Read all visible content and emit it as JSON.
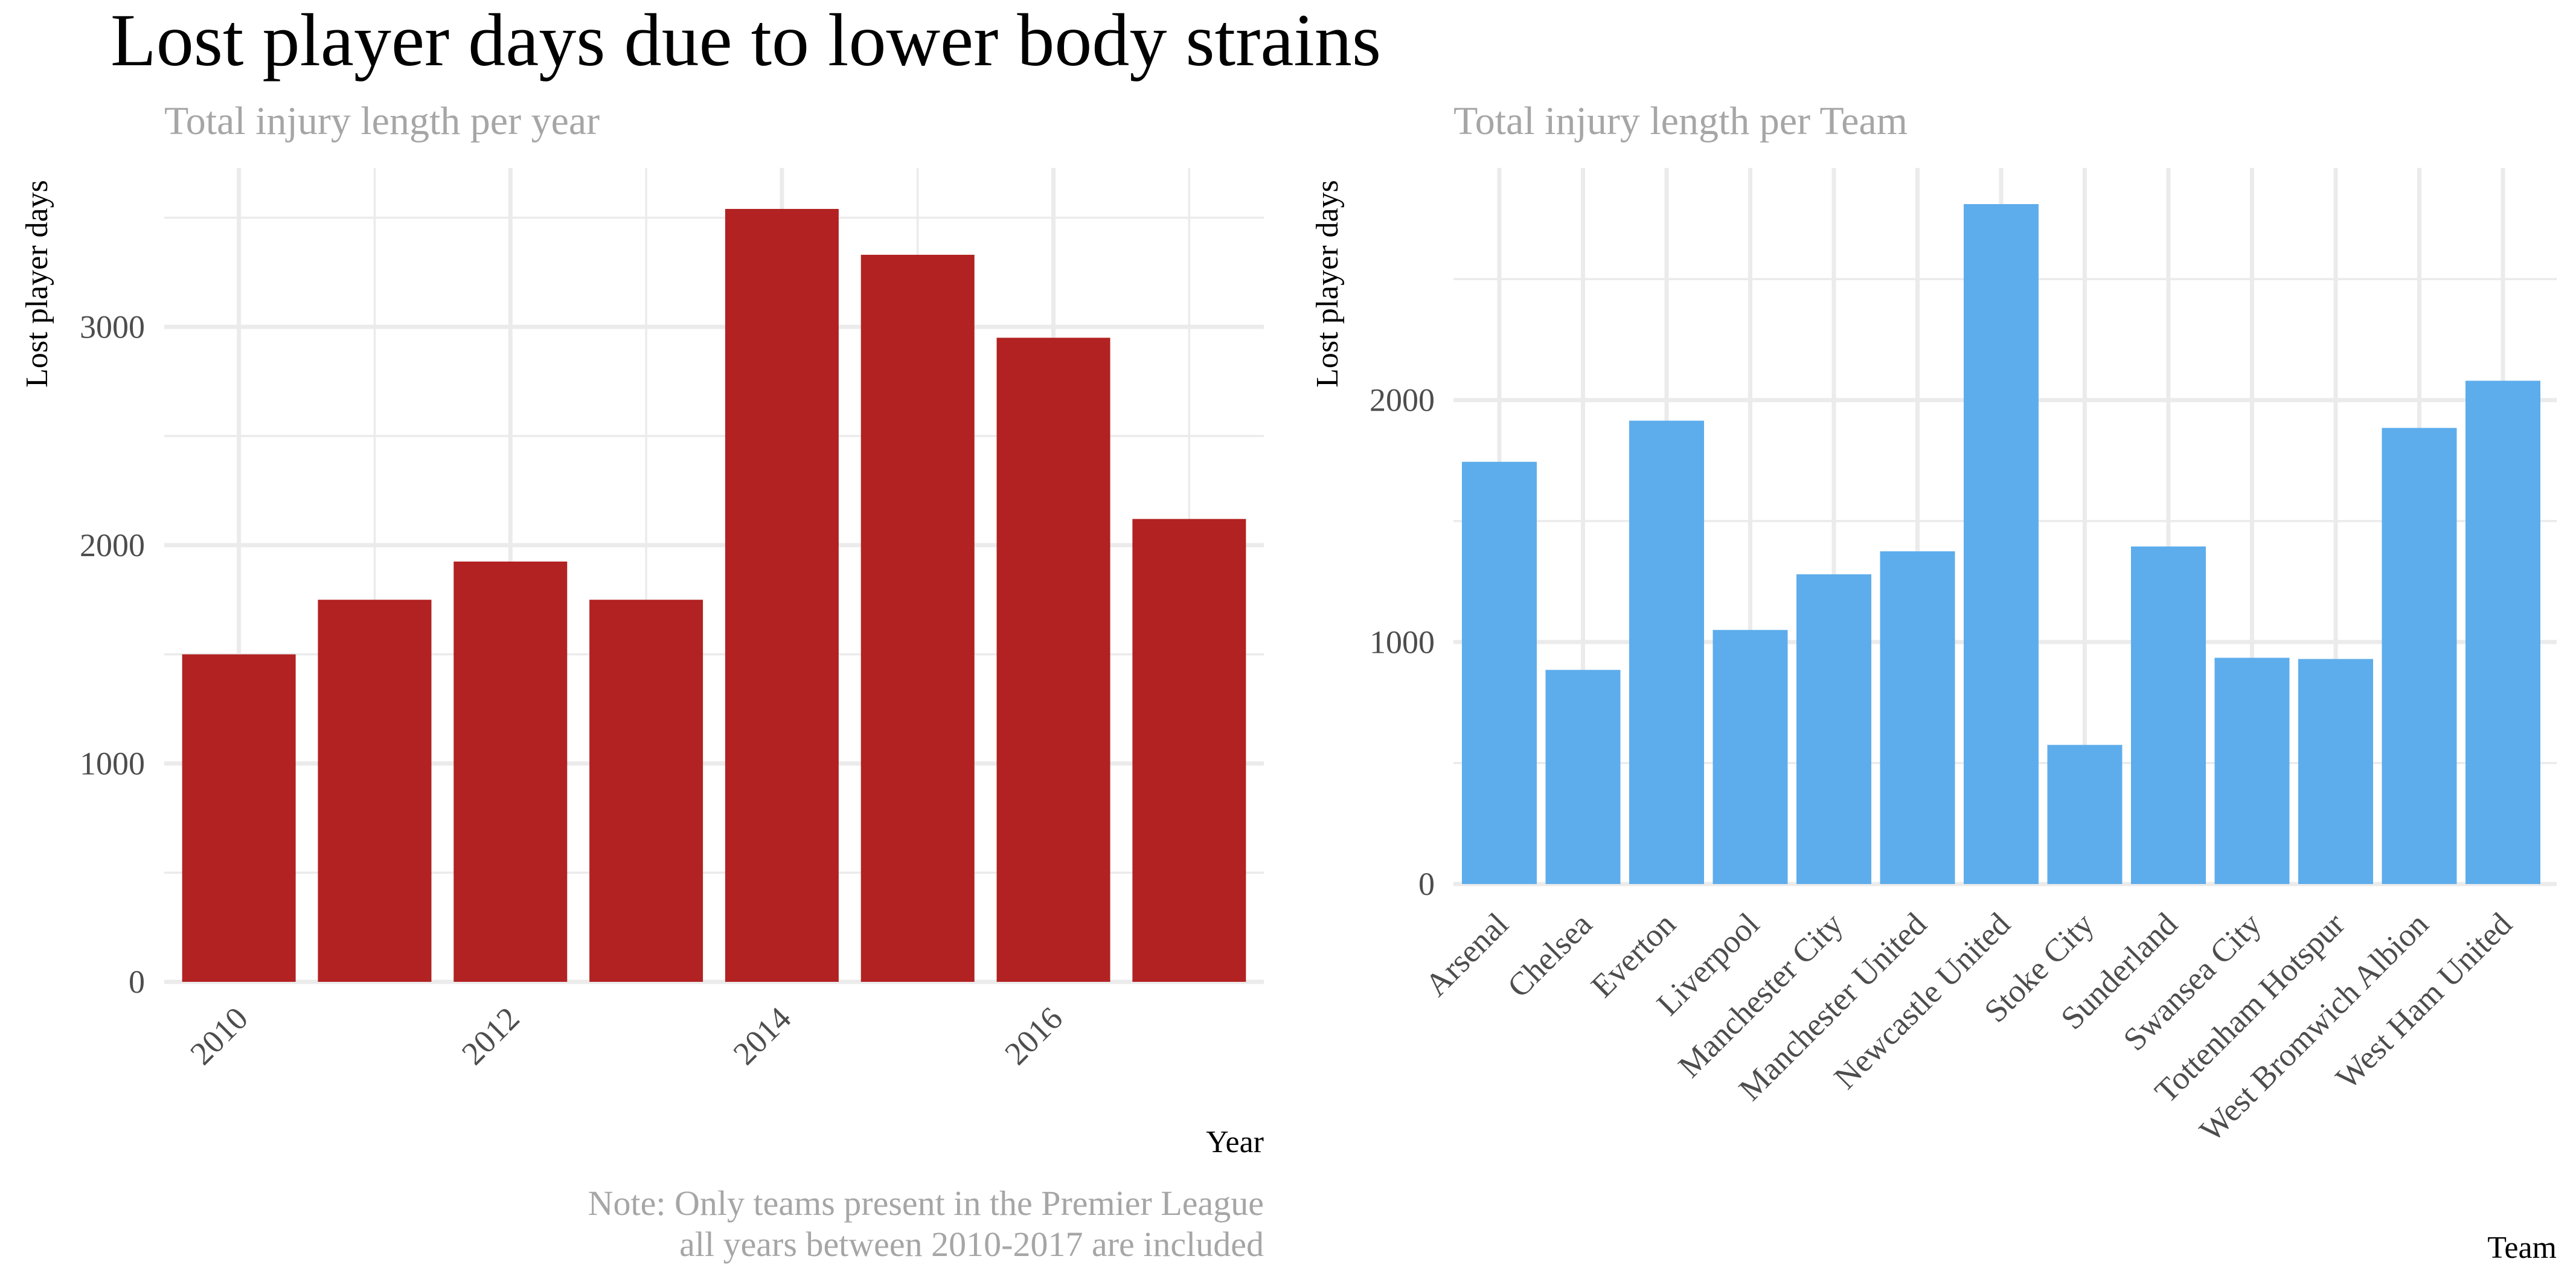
{
  "figure": {
    "title": "Lost player days due to lower body strains",
    "note_lines": [
      "Note: Only teams present in the Premier League",
      "all years between 2010-2017 are included"
    ]
  },
  "chart_data": [
    {
      "type": "bar",
      "title": "Total injury length per year",
      "xlabel": "Year",
      "ylabel": "Lost player days",
      "x": [
        2010,
        2011,
        2012,
        2013,
        2014,
        2015,
        2016,
        2017
      ],
      "values": [
        1500,
        1750,
        1925,
        1750,
        3540,
        3330,
        2950,
        2120
      ],
      "x_ticks": [
        "2010",
        "2012",
        "2014",
        "2016"
      ],
      "y_ticks": [
        "0",
        "1000",
        "2000",
        "3000"
      ],
      "ylim": [
        0,
        3540
      ],
      "grid": true,
      "color": "#B22222"
    },
    {
      "type": "bar",
      "title": "Total injury length per Team",
      "xlabel": "Team",
      "ylabel": "Lost player days",
      "categories": [
        "Arsenal",
        "Chelsea",
        "Everton",
        "Liverpool",
        "Manchester City",
        "Manchester United",
        "Newcastle United",
        "Stoke City",
        "Sunderland",
        "Swansea City",
        "Tottenham Hotspur",
        "West Bromwich Albion",
        "West Ham United"
      ],
      "values": [
        1745,
        885,
        1915,
        1050,
        1280,
        1375,
        2810,
        575,
        1395,
        935,
        930,
        1885,
        2080
      ],
      "y_ticks": [
        "0",
        "1000",
        "2000"
      ],
      "ylim": [
        0,
        2810
      ],
      "grid": true,
      "color": "#5DADEC"
    }
  ]
}
